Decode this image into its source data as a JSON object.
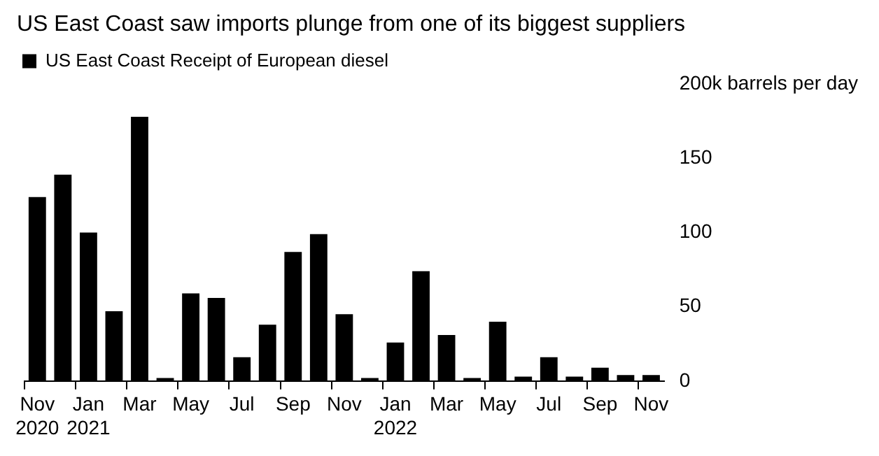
{
  "chart_data": {
    "type": "bar",
    "title": "US East Coast saw imports plunge from one of its biggest suppliers",
    "categories": [
      "Nov 2020",
      null,
      "Jan 2021",
      null,
      "Mar",
      null,
      "May",
      null,
      "Jul",
      null,
      "Sep",
      null,
      "Nov",
      null,
      "Jan 2022",
      null,
      "Mar",
      null,
      "May",
      null,
      "Jul",
      null,
      "Sep",
      null,
      "Nov"
    ],
    "series": [
      {
        "name": "US East Coast Receipt of European diesel",
        "color": "#000000",
        "values": [
          124,
          139,
          100,
          47,
          178,
          2,
          59,
          56,
          16,
          38,
          87,
          99,
          45,
          2,
          26,
          74,
          31,
          2,
          40,
          3,
          16,
          3,
          9,
          4,
          4
        ]
      }
    ],
    "ylim": [
      0,
      200
    ],
    "yticks": [
      0,
      50,
      100,
      150,
      {
        "value": 200,
        "label": "200k barrels per day"
      }
    ],
    "legend": "top left"
  }
}
